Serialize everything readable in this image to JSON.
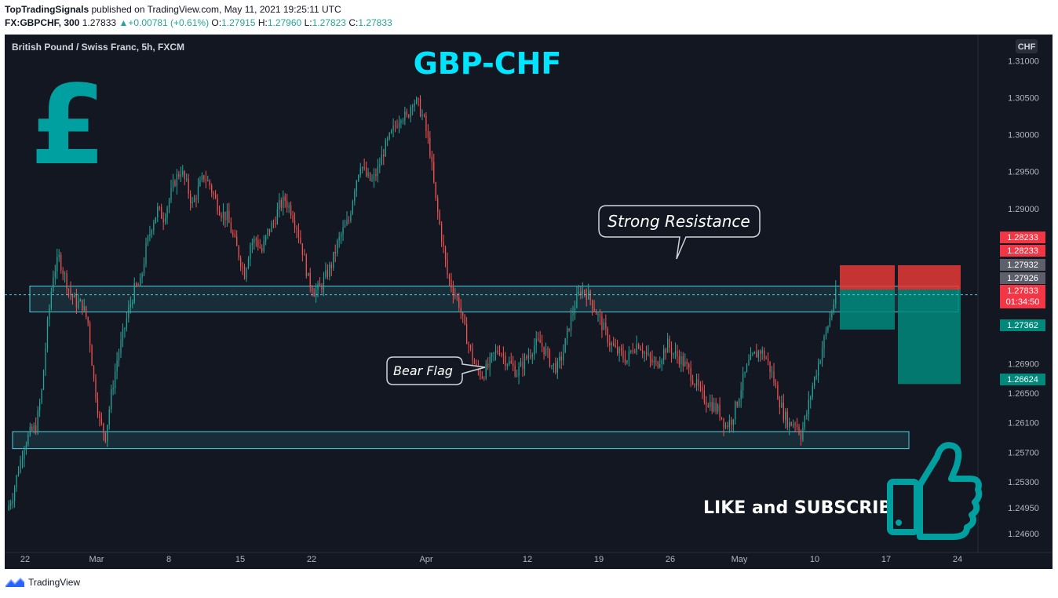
{
  "header": {
    "author": "TopTradingSignals",
    "published_text": "published on TradingView.com, May 11, 2021 19:25:11 UTC",
    "symbol_interval": "FX:GBPCHF, 300",
    "last": "1.27833",
    "change": "+0.00781 (+0.61%)",
    "o_label": "O:",
    "o_value": "1.27915",
    "h_label": "H:",
    "h_value": "1.27960",
    "l_label": "L:",
    "l_value": "1.27823",
    "c_label": "C:",
    "c_value": "1.27833"
  },
  "chart_title": "British Pound / Swiss Franc, 5h, FXCM",
  "big_title": "GBP-CHF",
  "currency_badge": "CHF",
  "pound_symbol": "£",
  "callouts": {
    "resistance": "Strong Resistance",
    "bear_flag": "Bear Flag"
  },
  "cta": "LIKE and SUBSCRIBE",
  "footer": {
    "brand": "TradingView"
  },
  "colors": {
    "background": "#131722",
    "up": "#26a69a",
    "down": "#ef5350",
    "title": "#00e5ff",
    "zone": "#4dd0e1",
    "target": "#00897b",
    "stop": "#e53935"
  },
  "chart_data": {
    "type": "candlestick",
    "symbol": "GBPCHF",
    "timeframe": "5h",
    "x_ticks": [
      "22",
      "Mar",
      "8",
      "15",
      "22",
      "Apr",
      "12",
      "19",
      "26",
      "May",
      "10",
      "17",
      "24"
    ],
    "y_ticks": [
      "1.31000",
      "1.30500",
      "1.30000",
      "1.29500",
      "1.29000",
      "1.26900",
      "1.26500",
      "1.26100",
      "1.25700",
      "1.25300",
      "1.24950",
      "1.24600"
    ],
    "ylim": [
      1.2445,
      1.3125
    ],
    "price_labels": [
      {
        "value": "1.28233",
        "kind": "stop"
      },
      {
        "value": "1.28233",
        "kind": "stop"
      },
      {
        "value": "1.27932",
        "kind": "grey"
      },
      {
        "value": "1.27926",
        "kind": "grey"
      },
      {
        "value": "1.27833",
        "kind": "last",
        "sub": "01:34:50"
      },
      {
        "value": "1.27362",
        "kind": "target"
      },
      {
        "value": "1.26624",
        "kind": "target"
      }
    ],
    "last_price": 1.27833,
    "zones": [
      {
        "name": "resistance",
        "top": 1.2795,
        "bottom": 1.276
      },
      {
        "name": "support",
        "top": 1.2598,
        "bottom": 1.2575
      }
    ],
    "positions": [
      {
        "entry": 1.279,
        "stop": 1.28233,
        "target": 1.27362
      },
      {
        "entry": 1.279,
        "stop": 1.28233,
        "target": 1.26624
      }
    ],
    "close_path": [
      1.2492,
      1.2512,
      1.2548,
      1.258,
      1.2596,
      1.2604,
      1.2652,
      1.2742,
      1.2812,
      1.2833,
      1.2808,
      1.2784,
      1.2772,
      1.277,
      1.2745,
      1.2668,
      1.2612,
      1.2592,
      1.2648,
      1.2695,
      1.2728,
      1.2762,
      1.279,
      1.2798,
      1.2846,
      1.2878,
      1.2898,
      1.2888,
      1.2912,
      1.2938,
      1.2952,
      1.2932,
      1.2905,
      1.2926,
      1.2944,
      1.2932,
      1.2911,
      1.2895,
      1.2888,
      1.2862,
      1.2838,
      1.2812,
      1.2852,
      1.2858,
      1.2842,
      1.2868,
      1.288,
      1.2903,
      1.2912,
      1.2898,
      1.2876,
      1.2844,
      1.2804,
      1.2788,
      1.2792,
      1.2808,
      1.2824,
      1.2852,
      1.287,
      1.2884,
      1.293,
      1.2962,
      1.2944,
      1.2936,
      1.2952,
      1.2978,
      1.2995,
      1.3012,
      1.3028,
      1.3022,
      1.3048,
      1.304,
      1.3018,
      1.2978,
      1.291,
      1.2862,
      1.281,
      1.279,
      1.2772,
      1.2735,
      1.2706,
      1.2682,
      1.2675,
      1.2685,
      1.2702,
      1.271,
      1.2696,
      1.2688,
      1.2678,
      1.269,
      1.2702,
      1.2715,
      1.2718,
      1.2706,
      1.2688,
      1.2685,
      1.2706,
      1.2742,
      1.277,
      1.279,
      1.2786,
      1.2772,
      1.2754,
      1.2737,
      1.2719,
      1.2708,
      1.2702,
      1.2695,
      1.2712,
      1.2718,
      1.2705,
      1.2694,
      1.2688,
      1.2702,
      1.2716,
      1.2704,
      1.2698,
      1.2688,
      1.2676,
      1.266,
      1.2646,
      1.2638,
      1.2632,
      1.2624,
      1.2606,
      1.2614,
      1.2638,
      1.2668,
      1.269,
      1.2701,
      1.2708,
      1.2697,
      1.2676,
      1.2648,
      1.2622,
      1.2608,
      1.2612,
      1.2594,
      1.2623,
      1.266,
      1.269,
      1.2722,
      1.2752,
      1.2783
    ]
  }
}
